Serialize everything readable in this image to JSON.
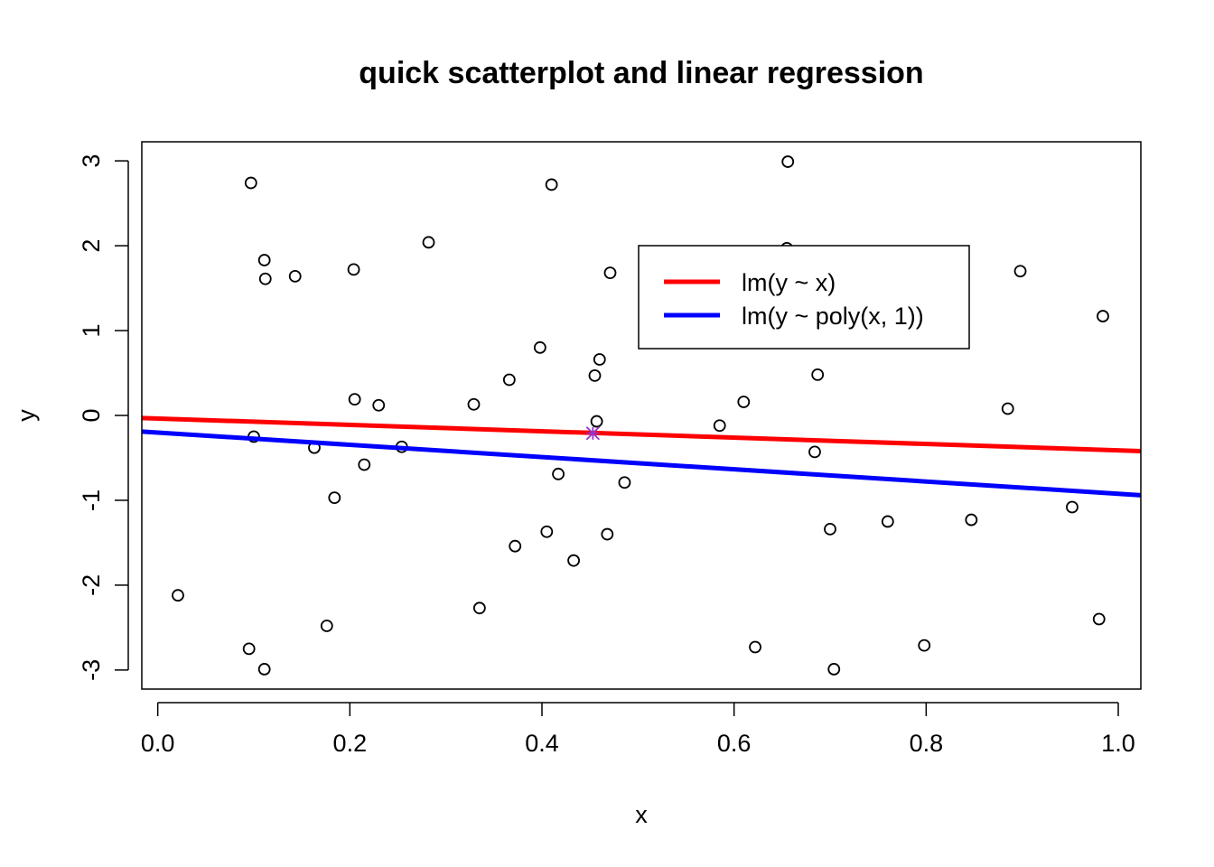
{
  "chart_data": {
    "type": "scatter",
    "title": "quick scatterplot and linear regression",
    "xlabel": "x",
    "ylabel": "y",
    "xlim": [
      -0.0166,
      1.0235
    ],
    "ylim": [
      -3.2247,
      3.2247
    ],
    "x_ticks": [
      0.0,
      0.2,
      0.4,
      0.6,
      0.8,
      1.0
    ],
    "x_tick_labels": [
      "0.0",
      "0.2",
      "0.4",
      "0.6",
      "0.8",
      "1.0"
    ],
    "y_ticks": [
      -3,
      -2,
      -1,
      0,
      1,
      2,
      3
    ],
    "y_tick_labels": [
      "-3",
      "-2",
      "-1",
      "0",
      "1",
      "2",
      "3"
    ],
    "grid": false,
    "legend_position": "top-right",
    "points": [
      {
        "x": 0.097,
        "y": 2.74
      },
      {
        "x": 0.111,
        "y": 1.83
      },
      {
        "x": 0.112,
        "y": 1.61
      },
      {
        "x": 0.143,
        "y": 1.64
      },
      {
        "x": 0.204,
        "y": 1.72
      },
      {
        "x": 0.282,
        "y": 2.04
      },
      {
        "x": 0.41,
        "y": 2.72
      },
      {
        "x": 0.656,
        "y": 2.99
      },
      {
        "x": 0.471,
        "y": 1.68
      },
      {
        "x": 0.898,
        "y": 1.7
      },
      {
        "x": 0.984,
        "y": 1.17
      },
      {
        "x": 0.398,
        "y": 0.8
      },
      {
        "x": 0.46,
        "y": 0.66
      },
      {
        "x": 0.366,
        "y": 0.42
      },
      {
        "x": 0.455,
        "y": 0.47
      },
      {
        "x": 0.687,
        "y": 0.48
      },
      {
        "x": 0.61,
        "y": 0.16
      },
      {
        "x": 0.205,
        "y": 0.19
      },
      {
        "x": 0.23,
        "y": 0.12
      },
      {
        "x": 0.329,
        "y": 0.13
      },
      {
        "x": 0.885,
        "y": 0.08
      },
      {
        "x": 0.1,
        "y": -0.25
      },
      {
        "x": 0.457,
        "y": -0.07
      },
      {
        "x": 0.585,
        "y": -0.12
      },
      {
        "x": 0.163,
        "y": -0.38
      },
      {
        "x": 0.254,
        "y": -0.37
      },
      {
        "x": 0.684,
        "y": -0.43
      },
      {
        "x": 0.215,
        "y": -0.58
      },
      {
        "x": 0.417,
        "y": -0.69
      },
      {
        "x": 0.486,
        "y": -0.79
      },
      {
        "x": 0.184,
        "y": -0.97
      },
      {
        "x": 0.952,
        "y": -1.08
      },
      {
        "x": 0.847,
        "y": -1.23
      },
      {
        "x": 0.76,
        "y": -1.25
      },
      {
        "x": 0.7,
        "y": -1.34
      },
      {
        "x": 0.405,
        "y": -1.37
      },
      {
        "x": 0.468,
        "y": -1.4
      },
      {
        "x": 0.372,
        "y": -1.54
      },
      {
        "x": 0.433,
        "y": -1.71
      },
      {
        "x": 0.021,
        "y": -2.12
      },
      {
        "x": 0.335,
        "y": -2.27
      },
      {
        "x": 0.98,
        "y": -2.4
      },
      {
        "x": 0.176,
        "y": -2.48
      },
      {
        "x": 0.095,
        "y": -2.75
      },
      {
        "x": 0.622,
        "y": -2.73
      },
      {
        "x": 0.798,
        "y": -2.71
      },
      {
        "x": 0.111,
        "y": -2.99
      },
      {
        "x": 0.704,
        "y": -2.99
      },
      {
        "x": 0.655,
        "y": 1.97
      }
    ],
    "center_marker": {
      "x": 0.453,
      "y": -0.21,
      "symbol": "*",
      "color": "#9932CC"
    },
    "series": [
      {
        "name": "lm(y ~ x)",
        "type": "line",
        "color": "#FF0000",
        "x": [
          -0.0166,
          1.0235
        ],
        "y": [
          -0.03,
          -0.42
        ]
      },
      {
        "name": "lm(y ~ poly(x, 1))",
        "type": "line",
        "color": "#0000FF",
        "x": [
          -0.0166,
          1.0235
        ],
        "y": [
          -0.19,
          -0.94
        ]
      }
    ]
  }
}
